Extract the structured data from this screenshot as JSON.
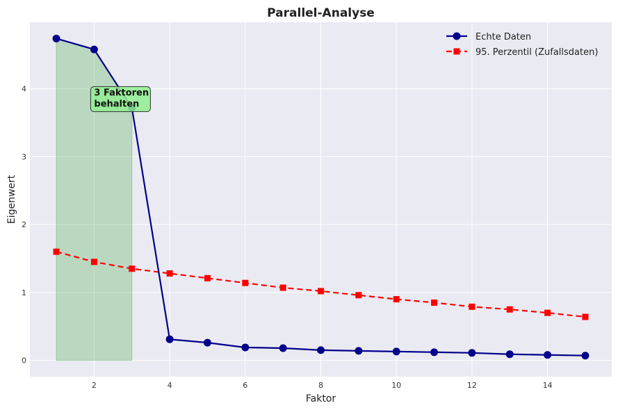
{
  "chart_data": {
    "type": "line",
    "title": "Parallel-Analyse",
    "xlabel": "Faktor",
    "ylabel": "Eigenwert",
    "xlim": [
      0.3,
      15.7
    ],
    "ylim": [
      -0.24,
      4.98
    ],
    "xticks": [
      2,
      4,
      6,
      8,
      10,
      12,
      14
    ],
    "yticks": [
      0,
      1,
      2,
      3,
      4
    ],
    "grid": true,
    "legend_position": "top-right",
    "x": [
      1,
      2,
      3,
      4,
      5,
      6,
      7,
      8,
      9,
      10,
      11,
      12,
      13,
      14,
      15
    ],
    "series": [
      {
        "name": "Echte Daten",
        "color": "#00008b",
        "marker": "circle",
        "line_style": "solid",
        "values": [
          4.74,
          4.58,
          3.72,
          0.31,
          0.26,
          0.19,
          0.18,
          0.15,
          0.14,
          0.13,
          0.12,
          0.11,
          0.09,
          0.08,
          0.07
        ]
      },
      {
        "name": "95. Perzentil (Zufallsdaten)",
        "color": "#ff0000",
        "marker": "square",
        "line_style": "dashed",
        "values": [
          1.6,
          1.45,
          1.35,
          1.28,
          1.21,
          1.14,
          1.07,
          1.02,
          0.96,
          0.9,
          0.85,
          0.79,
          0.75,
          0.7,
          0.64
        ]
      }
    ],
    "shaded_region": {
      "x_from": 1,
      "x_to": 3,
      "color": "#2ca02c"
    },
    "annotation": {
      "lines": [
        "3 Faktoren",
        "behalten"
      ],
      "x": 2,
      "y": 3.95,
      "background": "#90ee90"
    }
  }
}
